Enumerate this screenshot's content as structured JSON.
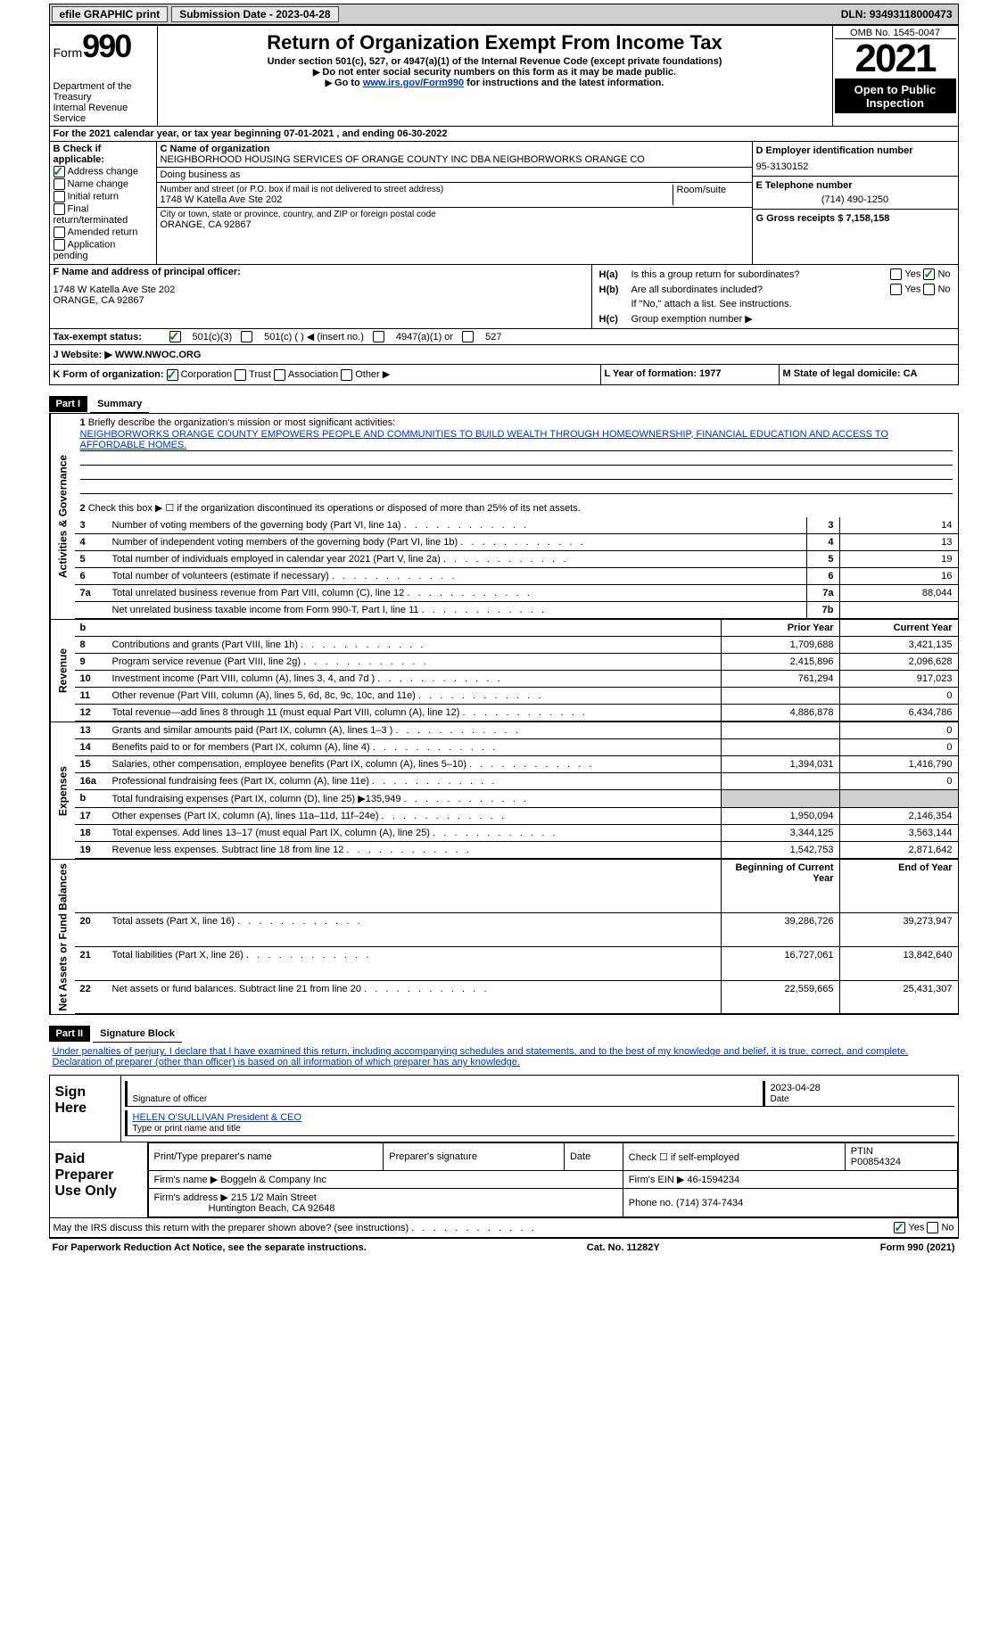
{
  "topbar": {
    "efile_label": "efile GRAPHIC print",
    "submission_label": "Submission Date - 2023-04-28",
    "dln": "DLN: 93493118000473"
  },
  "header": {
    "form_label": "Form",
    "form_number": "990",
    "dept": "Department of the Treasury",
    "irs": "Internal Revenue Service",
    "title": "Return of Organization Exempt From Income Tax",
    "subtitle": "Under section 501(c), 527, or 4947(a)(1) of the Internal Revenue Code (except private foundations)",
    "note1": "Do not enter social security numbers on this form as it may be made public.",
    "note2_prefix": "Go to ",
    "note2_link": "www.irs.gov/Form990",
    "note2_suffix": " for instructions and the latest information.",
    "omb": "OMB No. 1545-0047",
    "year": "2021",
    "open": "Open to Public Inspection"
  },
  "line_a": "For the 2021 calendar year, or tax year beginning 07-01-2021   , and ending 06-30-2022",
  "section_b": {
    "b_label": "B Check if applicable:",
    "b_address": "Address change",
    "b_name": "Name change",
    "b_initial": "Initial return",
    "b_final": "Final return/terminated",
    "b_amended": "Amended return",
    "b_app": "Application pending",
    "c_label": "C Name of organization",
    "c_name": "NEIGHBORHOOD HOUSING SERVICES OF ORANGE COUNTY INC DBA NEIGHBORWORKS ORANGE CO",
    "dba_label": "Doing business as",
    "addr_label": "Number and street (or P.O. box if mail is not delivered to street address)",
    "room_label": "Room/suite",
    "addr": "1748 W Katella Ave Ste 202",
    "city_label": "City or town, state or province, country, and ZIP or foreign postal code",
    "city": "ORANGE, CA  92867",
    "d_label": "D Employer identification number",
    "d_ein": "95-3130152",
    "e_label": "E Telephone number",
    "e_phone": "(714) 490-1250",
    "g_label": "G Gross receipts $ 7,158,158"
  },
  "officer": {
    "f_label": "F Name and address of principal officer:",
    "addr1": "1748 W Katella Ave Ste 202",
    "addr2": "ORANGE, CA  92867",
    "ha_lbl": "H(a)",
    "ha_text": "Is this a group return for subordinates?",
    "hb_lbl": "H(b)",
    "hb_text": "Are all subordinates included?",
    "hb_note": "If \"No,\" attach a list. See instructions.",
    "hc_lbl": "H(c)",
    "hc_text": "Group exemption number ▶",
    "yes": "Yes",
    "no": "No"
  },
  "status": {
    "i_label": "Tax-exempt status:",
    "s501c3": "501(c)(3)",
    "s501c": "501(c) (  ) ◀ (insert no.)",
    "s4947": "4947(a)(1) or",
    "s527": "527",
    "j_label": "J   Website: ▶",
    "j_val": "WWW.NWOC.ORG"
  },
  "klm": {
    "k_label": "K Form of organization:",
    "k_corp": "Corporation",
    "k_trust": "Trust",
    "k_assoc": "Association",
    "k_other": "Other ▶",
    "l_label": "L Year of formation: 1977",
    "m_label": "M State of legal domicile: CA"
  },
  "part1": {
    "label": "Part I",
    "title": "Summary",
    "tab_activities": "Activities & Governance",
    "tab_revenue": "Revenue",
    "tab_expenses": "Expenses",
    "tab_netassets": "Net Assets or Fund Balances",
    "line1_label": "Briefly describe the organization's mission or most significant activities:",
    "line1_text": "NEIGHBORWORKS ORANGE COUNTY EMPOWERS PEOPLE AND COMMUNITIES TO BUILD WEALTH THROUGH HOMEOWNERSHIP, FINANCIAL EDUCATION AND ACCESS TO AFFORDABLE HOMES.",
    "line2": "Check this box ▶ ☐ if the organization discontinued its operations or disposed of more than 25% of its net assets.",
    "rows_ag": [
      {
        "n": "3",
        "text": "Number of voting members of the governing body (Part VI, line 1a)",
        "box": "3",
        "val": "14"
      },
      {
        "n": "4",
        "text": "Number of independent voting members of the governing body (Part VI, line 1b)",
        "box": "4",
        "val": "13"
      },
      {
        "n": "5",
        "text": "Total number of individuals employed in calendar year 2021 (Part V, line 2a)",
        "box": "5",
        "val": "19"
      },
      {
        "n": "6",
        "text": "Total number of volunteers (estimate if necessary)",
        "box": "6",
        "val": "16"
      },
      {
        "n": "7a",
        "text": "Total unrelated business revenue from Part VIII, column (C), line 12",
        "box": "7a",
        "val": "88,044"
      },
      {
        "n": "",
        "text": "Net unrelated business taxable income from Form 990-T, Part I, line 11",
        "box": "7b",
        "val": ""
      }
    ],
    "prior_hdr": "Prior Year",
    "current_hdr": "Current Year",
    "rows_rev": [
      {
        "n": "8",
        "text": "Contributions and grants (Part VIII, line 1h)",
        "prior": "1,709,688",
        "curr": "3,421,135"
      },
      {
        "n": "9",
        "text": "Program service revenue (Part VIII, line 2g)",
        "prior": "2,415,896",
        "curr": "2,096,628"
      },
      {
        "n": "10",
        "text": "Investment income (Part VIII, column (A), lines 3, 4, and 7d )",
        "prior": "761,294",
        "curr": "917,023"
      },
      {
        "n": "11",
        "text": "Other revenue (Part VIII, column (A), lines 5, 6d, 8c, 9c, 10c, and 11e)",
        "prior": "",
        "curr": "0"
      },
      {
        "n": "12",
        "text": "Total revenue—add lines 8 through 11 (must equal Part VIII, column (A), line 12)",
        "prior": "4,886,878",
        "curr": "6,434,786"
      }
    ],
    "rows_exp": [
      {
        "n": "13",
        "text": "Grants and similar amounts paid (Part IX, column (A), lines 1–3 )",
        "prior": "",
        "curr": "0"
      },
      {
        "n": "14",
        "text": "Benefits paid to or for members (Part IX, column (A), line 4)",
        "prior": "",
        "curr": "0"
      },
      {
        "n": "15",
        "text": "Salaries, other compensation, employee benefits (Part IX, column (A), lines 5–10)",
        "prior": "1,394,031",
        "curr": "1,416,790"
      },
      {
        "n": "16a",
        "text": "Professional fundraising fees (Part IX, column (A), line 11e)",
        "prior": "",
        "curr": "0"
      },
      {
        "n": "b",
        "text": "Total fundraising expenses (Part IX, column (D), line 25) ▶135,949",
        "prior": "SHADE",
        "curr": "SHADE"
      },
      {
        "n": "17",
        "text": "Other expenses (Part IX, column (A), lines 11a–11d, 11f–24e)",
        "prior": "1,950,094",
        "curr": "2,146,354"
      },
      {
        "n": "18",
        "text": "Total expenses. Add lines 13–17 (must equal Part IX, column (A), line 25)",
        "prior": "3,344,125",
        "curr": "3,563,144"
      },
      {
        "n": "19",
        "text": "Revenue less expenses. Subtract line 18 from line 12",
        "prior": "1,542,753",
        "curr": "2,871,642"
      }
    ],
    "begin_hdr": "Beginning of Current Year",
    "end_hdr": "End of Year",
    "rows_net": [
      {
        "n": "20",
        "text": "Total assets (Part X, line 16)",
        "prior": "39,286,726",
        "curr": "39,273,947"
      },
      {
        "n": "21",
        "text": "Total liabilities (Part X, line 26)",
        "prior": "16,727,061",
        "curr": "13,842,640"
      },
      {
        "n": "22",
        "text": "Net assets or fund balances. Subtract line 21 from line 20",
        "prior": "22,559,665",
        "curr": "25,431,307"
      }
    ]
  },
  "part2": {
    "label": "Part II",
    "title": "Signature Block",
    "declaration": "Under penalties of perjury, I declare that I have examined this return, including accompanying schedules and statements, and to the best of my knowledge and belief, it is true, correct, and complete. Declaration of preparer (other than officer) is based on all information of which preparer has any knowledge.",
    "sign_here": "Sign Here",
    "sig_officer": "Signature of officer",
    "sig_date": "2023-04-28",
    "sig_name": "HELEN O'SULLIVAN President & CEO",
    "sig_name_label": "Type or print name and title",
    "date_label": "Date",
    "paid_label": "Paid Preparer Use Only",
    "prep_name_label": "Print/Type preparer's name",
    "prep_sig_label": "Preparer's signature",
    "check_if": "Check ☐ if self-employed",
    "ptin_label": "PTIN",
    "ptin": "P00854324",
    "firm_name_label": "Firm's name   ▶",
    "firm_name": "Boggeln & Company Inc",
    "firm_ein_label": "Firm's EIN ▶",
    "firm_ein": "46-1594234",
    "firm_addr_label": "Firm's address ▶",
    "firm_addr1": "215 1/2 Main Street",
    "firm_addr2": "Huntington Beach, CA  92648",
    "phone_label": "Phone no.",
    "phone": "(714) 374-7434",
    "discuss": "May the IRS discuss this return with the preparer shown above? (see instructions)",
    "yes": "Yes",
    "no": "No"
  },
  "footer": {
    "notice": "For Paperwork Reduction Act Notice, see the separate instructions.",
    "cat": "Cat. No. 11282Y",
    "form": "Form 990 (2021)"
  }
}
